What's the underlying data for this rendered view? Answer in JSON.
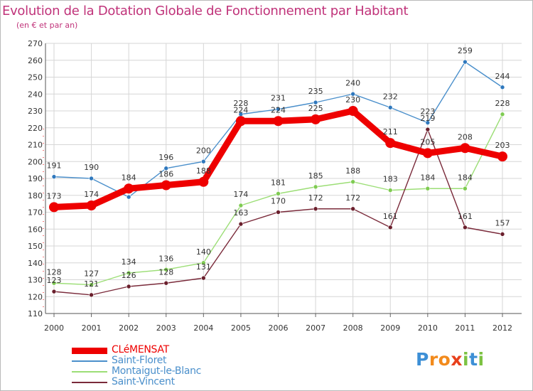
{
  "chart_data": {
    "type": "line",
    "title": "Evolution de la Dotation Globale de Fonctionnement par Habitant",
    "subtitle": "(en € et par an)",
    "x": [
      "2000",
      "2001",
      "2002",
      "2003",
      "2004",
      "2005",
      "2006",
      "2007",
      "2008",
      "2009",
      "2010",
      "2011",
      "2012"
    ],
    "ylim": [
      110,
      270
    ],
    "yticks": [
      110,
      120,
      130,
      140,
      150,
      160,
      170,
      180,
      190,
      200,
      210,
      220,
      230,
      240,
      250,
      260,
      270
    ],
    "grid": true,
    "legend_position": "bottom-left",
    "series": [
      {
        "name": "Saint-Floret",
        "color": "#4a8fcb",
        "marker": "#2f78bd",
        "values": [
          191,
          190,
          179,
          196,
          200,
          228,
          231,
          235,
          240,
          232,
          223,
          259,
          244
        ],
        "labels": [
          "191",
          "190",
          "",
          "196",
          "200",
          "228",
          "231",
          "235",
          "240",
          "232",
          "223",
          "259",
          "244"
        ]
      },
      {
        "name": "Montaigut-le-Blanc",
        "color": "#9cde76",
        "marker": "#7fcb52",
        "values": [
          128,
          127,
          134,
          136,
          140,
          174,
          181,
          185,
          188,
          183,
          184,
          184,
          228
        ],
        "labels": [
          "128",
          "127",
          "134",
          "136",
          "140",
          "174",
          "181",
          "185",
          "188",
          "183",
          "184",
          "184",
          "228"
        ]
      },
      {
        "name": "Saint-Vincent",
        "color": "#7a2a3a",
        "marker": "#6a1f2c",
        "values": [
          123,
          121,
          126,
          128,
          131,
          163,
          170,
          172,
          172,
          161,
          219,
          161,
          157
        ],
        "labels": [
          "123",
          "121",
          "126",
          "128",
          "131",
          "163",
          "170",
          "172",
          "172",
          "161",
          "219",
          "161",
          "157"
        ]
      },
      {
        "name": "CLéMENSAT",
        "color": "#ee0000",
        "marker": "#ee0000",
        "values": [
          173,
          174,
          184,
          186,
          188,
          224,
          224,
          225,
          230,
          211,
          205,
          208,
          203
        ],
        "labels": [
          "173",
          "174",
          "184",
          "186",
          "188",
          "224",
          "224",
          "225",
          "230",
          "211",
          "205",
          "208",
          "203"
        ]
      }
    ]
  },
  "legend": [
    {
      "name": "CLéMENSAT",
      "color": "#ee0000"
    },
    {
      "name": "Saint-Floret",
      "color": "#4a8fcb"
    },
    {
      "name": "Montaigut-le-Blanc",
      "color": "#9cde76"
    },
    {
      "name": "Saint-Vincent",
      "color": "#7a2a3a"
    }
  ],
  "logo": {
    "text": "Proxiti",
    "letters": [
      "P",
      "r",
      "o",
      "x",
      "i",
      "t",
      "i"
    ],
    "colors": [
      "#3d8fd6",
      "#f28a1c",
      "#f28a1c",
      "#e8401c",
      "#7cc242",
      "#3d8fd6",
      "#7cc242"
    ]
  }
}
